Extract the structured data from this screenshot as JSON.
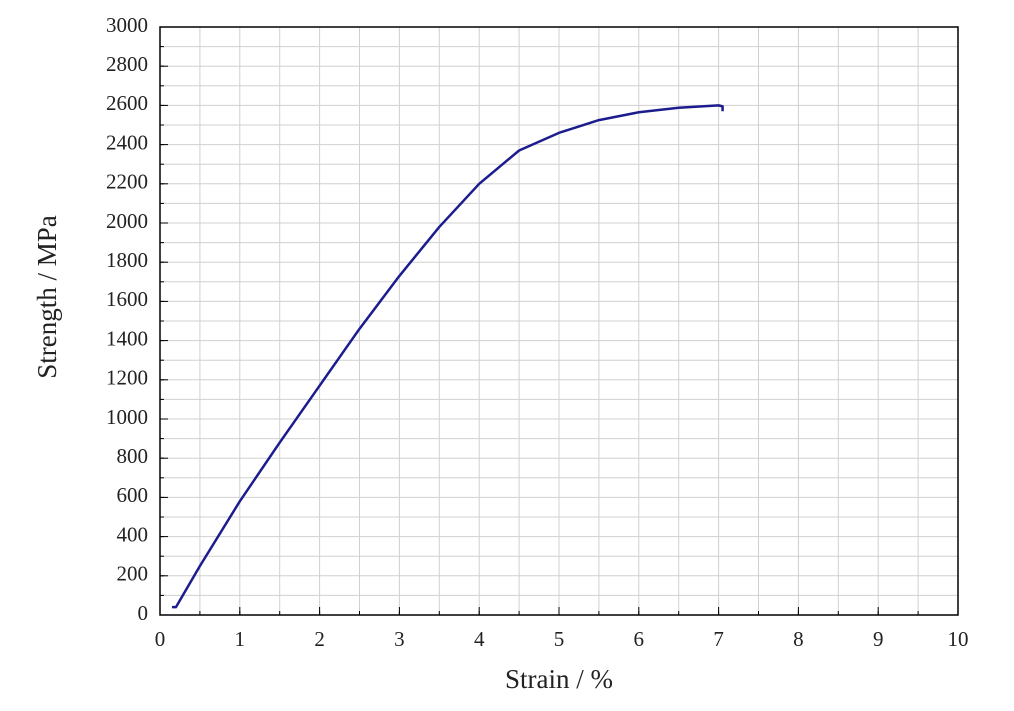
{
  "chart_data": {
    "type": "line",
    "x_label": "Strain / %",
    "y_label": "Strength / MPa",
    "x": [
      0.15,
      0.2,
      0.5,
      1,
      1.5,
      2,
      2.5,
      3,
      3.5,
      4,
      4.5,
      5,
      5.5,
      6,
      6.5,
      7,
      7.05,
      7.05
    ],
    "values": [
      40,
      40,
      250,
      580,
      880,
      1170,
      1460,
      1730,
      1980,
      2200,
      2370,
      2460,
      2525,
      2565,
      2588,
      2600,
      2595,
      2570
    ],
    "color": "#1c1c8e",
    "xlim": [
      0,
      10
    ],
    "xticks": [
      0,
      1,
      2,
      3,
      4,
      5,
      6,
      7,
      8,
      9,
      10
    ],
    "ylim": [
      0,
      3000
    ],
    "yticks": [
      0,
      200,
      400,
      600,
      800,
      1000,
      1200,
      1400,
      1600,
      1800,
      2000,
      2200,
      2400,
      2600,
      2800,
      3000
    ],
    "x_minor_step": 0.5,
    "y_minor_step": 100,
    "grid": true
  }
}
